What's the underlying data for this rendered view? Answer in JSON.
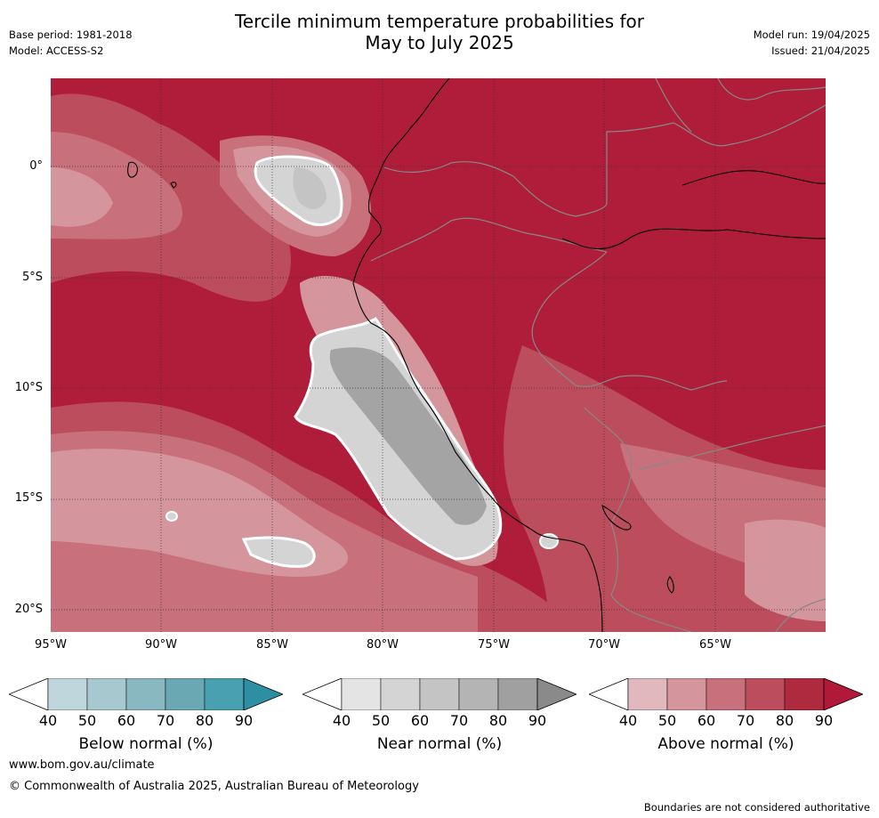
{
  "title_line1": "Tercile minimum temperature probabilities for",
  "title_line2": "May to July 2025",
  "base_period": "Base period: 1981-2018",
  "model": "Model: ACCESS-S2",
  "model_run": "Model run: 19/04/2025",
  "issued": "Issued: 21/04/2025",
  "lat_labels": [
    "0°",
    "5°S",
    "10°S",
    "15°S",
    "20°S"
  ],
  "lon_labels": [
    "95°W",
    "90°W",
    "85°W",
    "80°W",
    "75°W",
    "70°W",
    "65°W"
  ],
  "colorbars": [
    {
      "label": "Below normal (%)",
      "ticks": [
        "40",
        "50",
        "60",
        "70",
        "80",
        "90"
      ],
      "colors": [
        "#ffffff",
        "#bfd6dc",
        "#a7c8cf",
        "#89b8c1",
        "#6aa9b4",
        "#48a0b0",
        "#2e8fa2"
      ]
    },
    {
      "label": "Near normal (%)",
      "ticks": [
        "40",
        "50",
        "60",
        "70",
        "80",
        "90"
      ],
      "colors": [
        "#ffffff",
        "#e4e4e4",
        "#d4d4d4",
        "#c4c4c4",
        "#b4b4b4",
        "#a0a0a0",
        "#8a8a8a"
      ]
    },
    {
      "label": "Above normal (%)",
      "ticks": [
        "40",
        "50",
        "60",
        "70",
        "80",
        "90"
      ],
      "colors": [
        "#ffffff",
        "#e0b8be",
        "#d5959d",
        "#c8707b",
        "#bb4d5c",
        "#b02a3f",
        "#b01a38"
      ]
    }
  ],
  "website": "www.bom.gov.au/climate",
  "copyright": "© Commonwealth of Australia 2025, Australian Bureau of Meteorology",
  "boundaries_note": "Boundaries are not considered authoritative"
}
